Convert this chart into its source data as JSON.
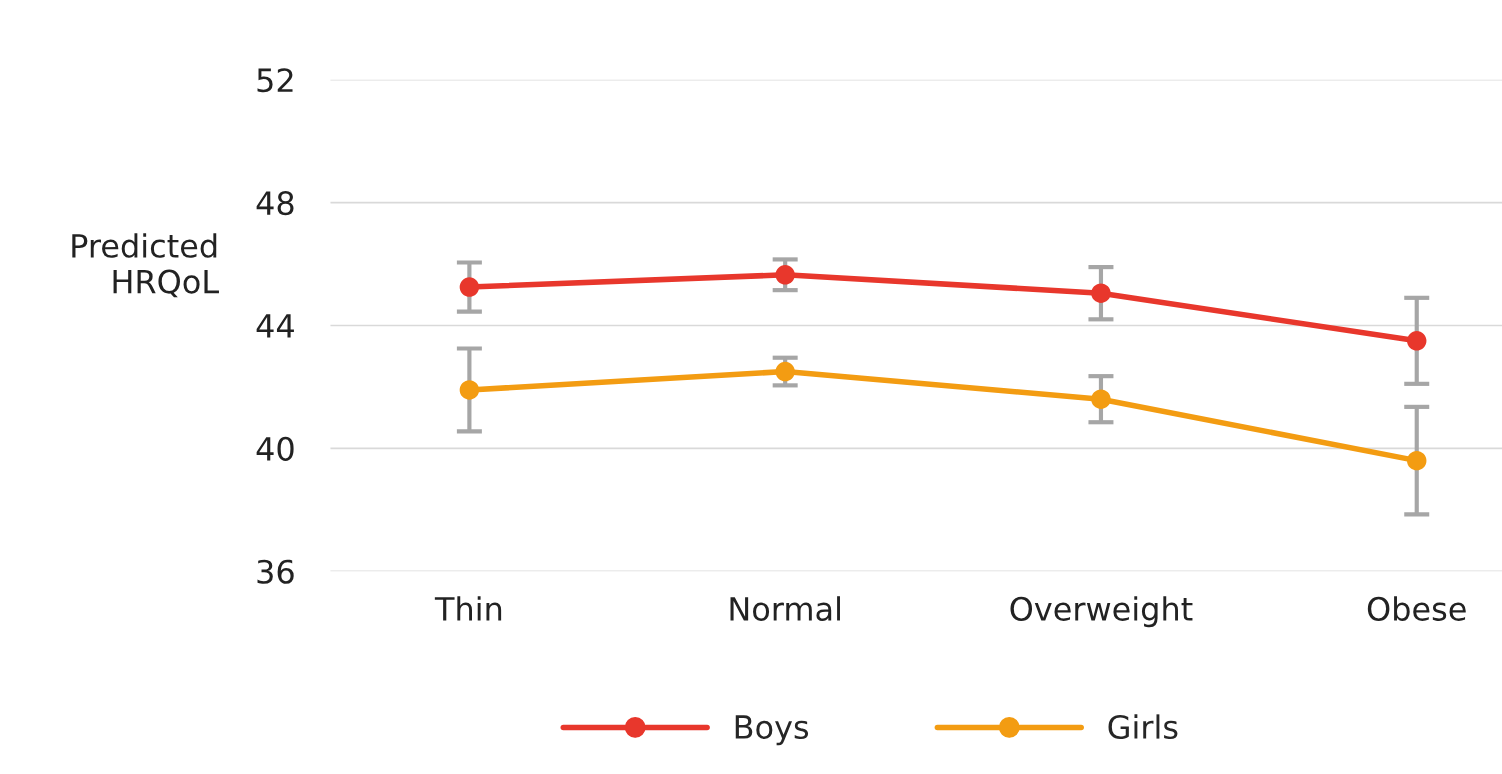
{
  "chart_data": {
    "type": "line",
    "ylabel": "Predicted\nHRQoL",
    "categories": [
      "Thin",
      "Normal",
      "Overweight",
      "Obese"
    ],
    "series": [
      {
        "name": "Boys",
        "color": "#e8372c",
        "values": [
          45.25,
          45.65,
          45.05,
          43.5
        ],
        "errors": [
          0.8,
          0.5,
          0.85,
          1.4
        ]
      },
      {
        "name": "Girls",
        "color": "#f39c12",
        "values": [
          41.9,
          42.5,
          41.6,
          39.6
        ],
        "errors": [
          1.35,
          0.45,
          0.75,
          1.75
        ]
      }
    ],
    "ylim": [
      36,
      52
    ],
    "yticks": [
      36,
      40,
      44,
      48,
      52
    ],
    "grid": "y",
    "legend": "bottom",
    "marker": "circle",
    "line_style": "solid"
  }
}
